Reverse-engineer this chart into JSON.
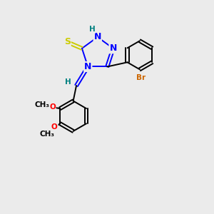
{
  "bg_color": "#ebebeb",
  "atom_colors": {
    "N": "#0000FF",
    "S": "#CCCC00",
    "Br": "#CC6600",
    "O": "#FF0000",
    "C": "#000000",
    "H": "#008080"
  }
}
